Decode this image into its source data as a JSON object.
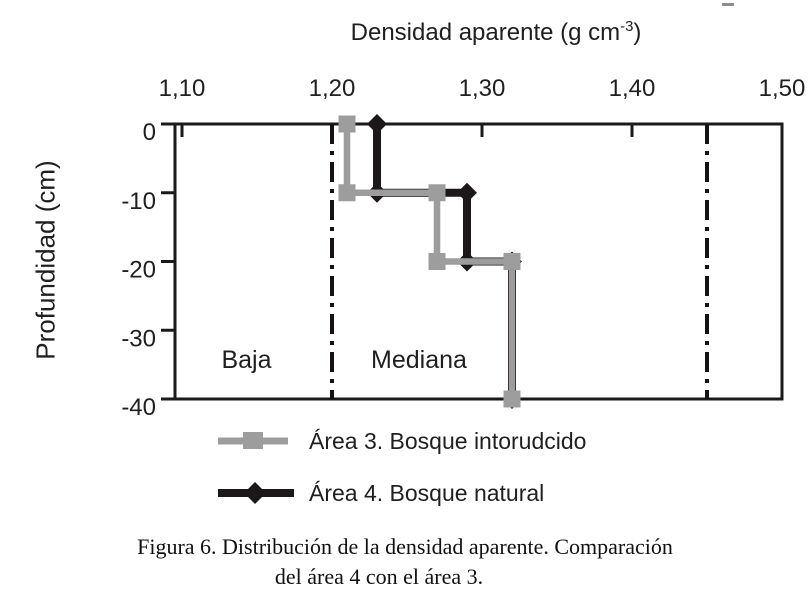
{
  "title": {
    "prefix": "Densidad aparente (g cm",
    "sup": "-3",
    "suffix": ")"
  },
  "caption": {
    "line1": "Figura 6. Distribución de la densidad aparente. Comparación",
    "line2": "del área 4 con el área 3."
  },
  "chart_data": {
    "type": "line",
    "title": "Densidad aparente (g cm⁻³)",
    "xlabel": "Densidad aparente (g cm⁻³)",
    "ylabel": "Profundidad (cm)",
    "x_axis_position": "top",
    "xlim": [
      1.095,
      1.5
    ],
    "ylim": [
      -40,
      0
    ],
    "grid": "off",
    "legend_position": "bottom",
    "x_ticks": [
      {
        "value": 1.1,
        "label": "1,10"
      },
      {
        "value": 1.2,
        "label": "1,20"
      },
      {
        "value": 1.3,
        "label": "1,30"
      },
      {
        "value": 1.4,
        "label": "1,40"
      },
      {
        "value": 1.5,
        "label": "1,50"
      }
    ],
    "y_ticks": [
      {
        "value": 0,
        "label": "0"
      },
      {
        "value": -10,
        "label": "-10"
      },
      {
        "value": -20,
        "label": "-20"
      },
      {
        "value": -30,
        "label": "-30"
      },
      {
        "value": -40,
        "label": "-40"
      }
    ],
    "series": [
      {
        "name": "Área 3. Bosque intorudcido",
        "color": "#9d9d9d",
        "marker": "square",
        "points": [
          [
            1.21,
            0
          ],
          [
            1.21,
            -10
          ],
          [
            1.27,
            -10
          ],
          [
            1.27,
            -20
          ],
          [
            1.32,
            -20
          ],
          [
            1.32,
            -40
          ]
        ]
      },
      {
        "name": "Área 4. Bosque natural",
        "color": "#1c1719",
        "marker": "diamond",
        "points": [
          [
            1.23,
            0
          ],
          [
            1.23,
            -10
          ],
          [
            1.29,
            -10
          ],
          [
            1.29,
            -20
          ],
          [
            1.32,
            -20
          ],
          [
            1.32,
            -40
          ]
        ]
      }
    ],
    "reference_lines": [
      {
        "x": 1.2,
        "style": "dash-dot"
      },
      {
        "x": 1.45,
        "style": "dash-dot"
      }
    ],
    "zone_labels": [
      {
        "text": "Baja",
        "x": 1.143,
        "y": -34.2
      },
      {
        "text": "Mediana",
        "x": 1.258,
        "y": -34.2
      }
    ],
    "colors": {
      "axis": "#1a1a1a",
      "text": "#1f1f1f",
      "reference": "#161214"
    }
  }
}
